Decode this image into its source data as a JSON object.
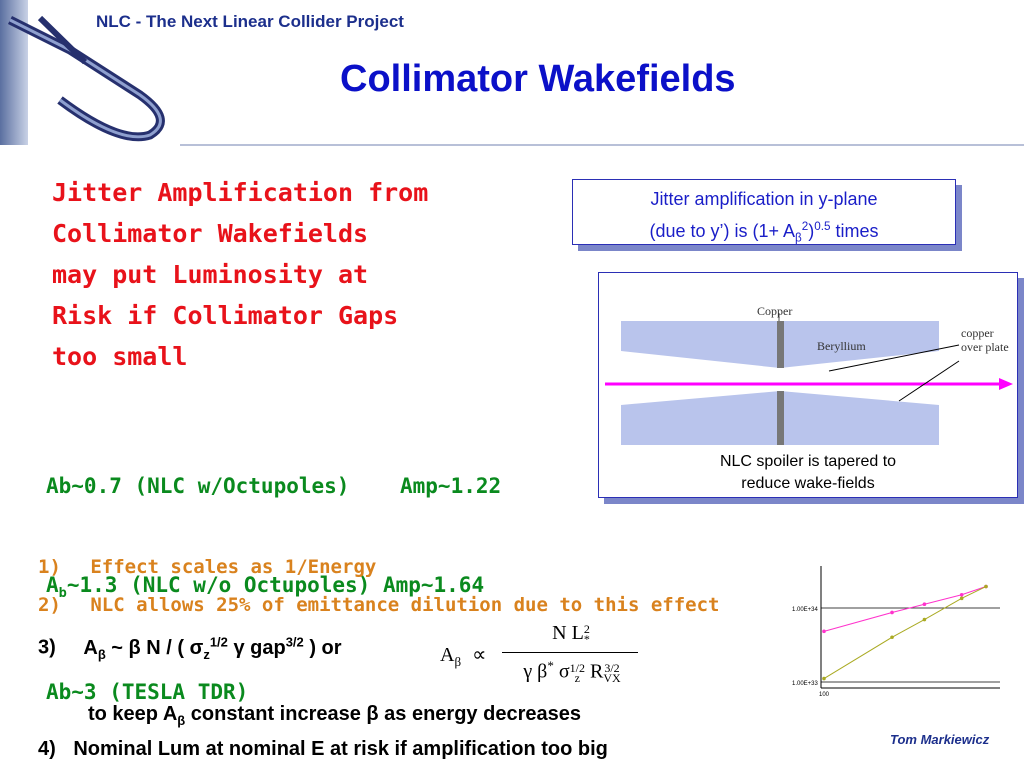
{
  "header": {
    "org_title": "NLC - The Next Linear Collider Project",
    "slide_title": "Collimator Wakefields",
    "author": "Tom Markiewicz"
  },
  "jitter_statement": [
    "Jitter Amplification from",
    "Collimator Wakefields",
    "may put Luminosity at",
    "Risk if Collimator Gaps",
    "too small"
  ],
  "amp_box": {
    "line1": "Jitter amplification in y-plane",
    "line2_prefix": "(due to y’)  is  (1+ A",
    "line2_sub": "β",
    "line2_sup_inner": "2",
    "line2_close": ")",
    "line2_power": "0.5",
    "line2_suffix": "  times"
  },
  "diagram": {
    "label_copper": "Copper",
    "label_beryllium": "Beryllium",
    "label_overplate_1": "copper",
    "label_overplate_2": "over plate",
    "caption_1": "NLC spoiler is tapered to",
    "caption_2": "reduce wake-fields",
    "beam_color": "#ff00ff"
  },
  "ab_list": {
    "row1": "Ab~0.7 (NLC w/Octupoles)    Amp~1.22",
    "row2_a": "A",
    "row2_sub": "b",
    "row2_rest": "~1.3 (NLC w/o Octupoles) Amp~1.64",
    "row3": "Ab~3 (TESLA TDR)"
  },
  "points": {
    "p1_num": "1)",
    "p1_text": "Effect scales as 1/Energy",
    "p2_num": "2)",
    "p2_text": "NLC allows 25% of emittance dilution due to this effect",
    "p3_num": "3)",
    "p3_A": "A",
    "p3_beta_sub": "β",
    "p3_mid": " ~ β N / ( σ",
    "p3_z_sub": "z",
    "p3_half_sup": "1/2",
    "p3_gamma": " γ gap",
    "p3_32_sup": "3/2",
    "p3_end": " ) or",
    "p3b_prefix": "to keep A",
    "p3b_sub": "β",
    "p3b_suffix": " constant increase β as energy decreases",
    "p4_num": "4)",
    "p4_text": "Nominal Lum at nominal E at risk if amplification too big"
  },
  "formula": {
    "lhs": "A",
    "lhs_sub": "β",
    "prop": "∝",
    "num_N": "N L",
    "num_sup": "2",
    "num_sub": "*",
    "den_gamma": "γ β",
    "den_star": "*",
    "den_sigma": "σ",
    "den_sigma_sup": "1/2",
    "den_sigma_sub": "z",
    "den_R": "R",
    "den_R_sup": "3/2",
    "den_R_sub": "VX"
  },
  "mini_plot": {
    "y_tick_top": "1.00E+34",
    "y_tick_bottom": "1.00E+33",
    "x_tick": "100",
    "series": [
      {
        "color": "#ff33cc",
        "x": [
          0,
          0.42,
          0.62,
          0.85,
          1.0
        ],
        "y": [
          0.48,
          0.64,
          0.71,
          0.79,
          0.86
        ]
      },
      {
        "color": "#aaaa22",
        "x": [
          0,
          0.42,
          0.62,
          0.85,
          1.0
        ],
        "y": [
          0.08,
          0.43,
          0.58,
          0.76,
          0.86
        ]
      }
    ]
  }
}
